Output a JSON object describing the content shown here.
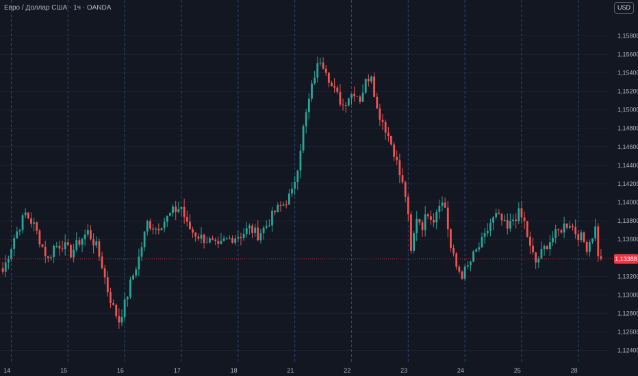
{
  "header": {
    "title": "Евро / Доллар США · 1ч · OANDA",
    "currency_button": "USD"
  },
  "colors": {
    "background": "#131722",
    "grid": "#1e2230",
    "session_line": "#2a4a7a",
    "up": "#26a69a",
    "down": "#ef5350",
    "price_tag": "#f23645",
    "price_line": "#f23645"
  },
  "chart_data": {
    "type": "candlestick",
    "symbol": "Евро / Доллар США",
    "timeframe": "1ч",
    "source": "OANDA",
    "y_ticks": [
      "1,15800",
      "1,15600",
      "1,15400",
      "1,15200",
      "1,15000",
      "1,14800",
      "1,14600",
      "1,14400",
      "1,14200",
      "1,14000",
      "1,13800",
      "1,13600",
      "1,13200",
      "1,13000",
      "1,12800",
      "1,12600",
      "1,12400"
    ],
    "y_tick_values": [
      1.158,
      1.156,
      1.154,
      1.152,
      1.15,
      1.148,
      1.146,
      1.144,
      1.142,
      1.14,
      1.138,
      1.136,
      1.132,
      1.13,
      1.128,
      1.126,
      1.124
    ],
    "ylim": [
      1.1233,
      1.1598
    ],
    "x_labels": [
      "14",
      "15",
      "16",
      "17",
      "18",
      "21",
      "22",
      "23",
      "24",
      "25",
      "28"
    ],
    "x_label_positions": [
      1.5,
      21.5,
      41.5,
      61.5,
      81.5,
      101.5,
      121.5,
      141.5,
      161.5,
      181.5,
      201.5
    ],
    "session_line_positions": [
      3,
      23,
      43,
      63,
      83,
      103,
      123,
      143,
      163,
      183,
      203
    ],
    "bars_total": 212,
    "current_price": "1,13388",
    "current_price_value": 1.13388,
    "anchors": [
      [
        0,
        1.1325
      ],
      [
        4,
        1.1362
      ],
      [
        8,
        1.1388
      ],
      [
        11,
        1.1375
      ],
      [
        14,
        1.1352
      ],
      [
        16,
        1.1338
      ],
      [
        18,
        1.1352
      ],
      [
        21,
        1.1355
      ],
      [
        24,
        1.1345
      ],
      [
        27,
        1.1358
      ],
      [
        30,
        1.1368
      ],
      [
        33,
        1.1352
      ],
      [
        35,
        1.1332
      ],
      [
        37,
        1.1305
      ],
      [
        39,
        1.1286
      ],
      [
        41,
        1.1272
      ],
      [
        43,
        1.129
      ],
      [
        45,
        1.1312
      ],
      [
        48,
        1.134
      ],
      [
        51,
        1.1378
      ],
      [
        54,
        1.1372
      ],
      [
        57,
        1.138
      ],
      [
        60,
        1.139
      ],
      [
        63,
        1.1395
      ],
      [
        65,
        1.1375
      ],
      [
        67,
        1.1368
      ],
      [
        70,
        1.1362
      ],
      [
        73,
        1.1358
      ],
      [
        76,
        1.135
      ],
      [
        78,
        1.1358
      ],
      [
        81,
        1.1362
      ],
      [
        84,
        1.1365
      ],
      [
        87,
        1.1372
      ],
      [
        90,
        1.1365
      ],
      [
        93,
        1.1375
      ],
      [
        96,
        1.139
      ],
      [
        99,
        1.1398
      ],
      [
        102,
        1.141
      ],
      [
        104,
        1.144
      ],
      [
        106,
        1.148
      ],
      [
        108,
        1.151
      ],
      [
        110,
        1.1538
      ],
      [
        112,
        1.1555
      ],
      [
        114,
        1.1545
      ],
      [
        116,
        1.1525
      ],
      [
        118,
        1.1515
      ],
      [
        120,
        1.1505
      ],
      [
        122,
        1.1515
      ],
      [
        124,
        1.152
      ],
      [
        126,
        1.1512
      ],
      [
        128,
        1.153
      ],
      [
        130,
        1.154
      ],
      [
        132,
        1.15
      ],
      [
        134,
        1.1488
      ],
      [
        136,
        1.1472
      ],
      [
        138,
        1.1455
      ],
      [
        140,
        1.143
      ],
      [
        142,
        1.1408
      ],
      [
        143,
        1.1382
      ],
      [
        144,
        1.1345
      ],
      [
        146,
        1.1385
      ],
      [
        148,
        1.1375
      ],
      [
        150,
        1.139
      ],
      [
        152,
        1.1382
      ],
      [
        154,
        1.1402
      ],
      [
        156,
        1.1395
      ],
      [
        158,
        1.135
      ],
      [
        160,
        1.133
      ],
      [
        162,
        1.1322
      ],
      [
        164,
        1.133
      ],
      [
        166,
        1.1342
      ],
      [
        168,
        1.1352
      ],
      [
        170,
        1.1362
      ],
      [
        172,
        1.1378
      ],
      [
        174,
        1.1385
      ],
      [
        176,
        1.138
      ],
      [
        178,
        1.137
      ],
      [
        180,
        1.1382
      ],
      [
        182,
        1.1388
      ],
      [
        184,
        1.1378
      ],
      [
        186,
        1.135
      ],
      [
        188,
        1.1335
      ],
      [
        190,
        1.1345
      ],
      [
        192,
        1.1355
      ],
      [
        194,
        1.1362
      ],
      [
        196,
        1.1368
      ],
      [
        198,
        1.1375
      ],
      [
        200,
        1.1378
      ],
      [
        202,
        1.1368
      ],
      [
        204,
        1.1362
      ],
      [
        206,
        1.1352
      ],
      [
        208,
        1.1365
      ],
      [
        209,
        1.1372
      ],
      [
        210,
        1.1345
      ],
      [
        211,
        1.13388
      ]
    ]
  }
}
